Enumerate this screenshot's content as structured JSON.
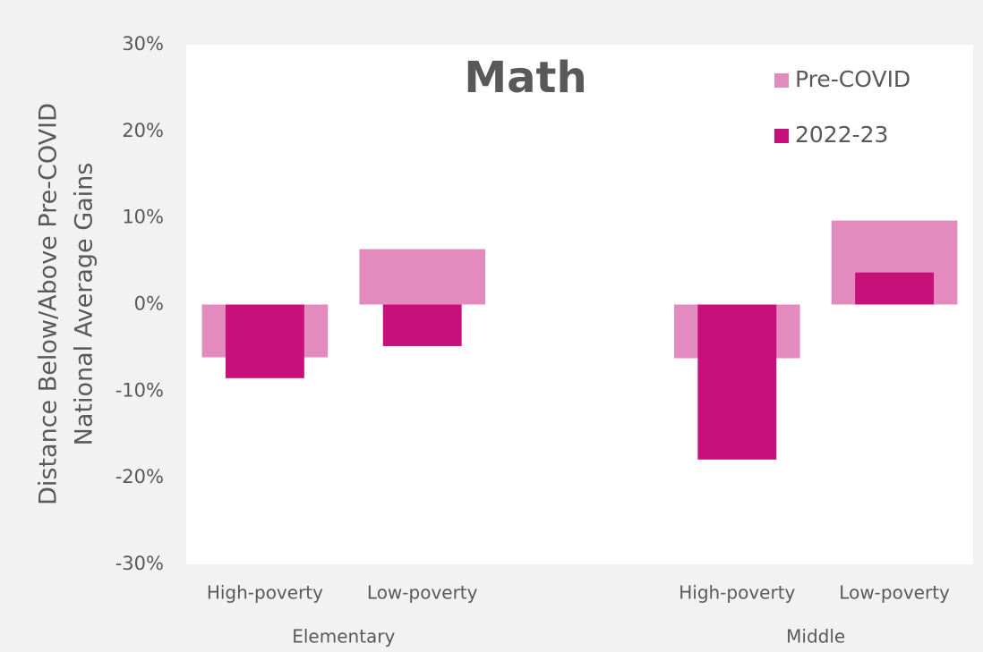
{
  "chart_data": {
    "type": "overlap-bar",
    "title": "Math",
    "y_label": [
      "Distance Below/Above Pre-COVID",
      "National Average Gains"
    ],
    "groups": [
      {
        "name": "Elementary",
        "categories": [
          "High-poverty",
          "Low-poverty"
        ]
      },
      {
        "name": "Middle",
        "categories": [
          "High-poverty",
          "Low-poverty"
        ]
      }
    ],
    "series": [
      {
        "name": "Pre-COVID",
        "color": "#e38bbf",
        "values": [
          -6.1,
          6.4,
          -6.2,
          9.7
        ]
      },
      {
        "name": "2022-23",
        "color": "#c8107b",
        "values": [
          -8.5,
          -4.8,
          -17.9,
          3.7
        ]
      }
    ],
    "ylim": [
      -30,
      30
    ],
    "yticks": [
      {
        "value": -30,
        "label": "-30%"
      },
      {
        "value": -20,
        "label": "-20%"
      },
      {
        "value": -10,
        "label": "-10%"
      },
      {
        "value": 0,
        "label": "0%"
      },
      {
        "value": 10,
        "label": "10%"
      },
      {
        "value": 20,
        "label": "20%"
      },
      {
        "value": 30,
        "label": "30%"
      }
    ],
    "legend": "top-right"
  }
}
